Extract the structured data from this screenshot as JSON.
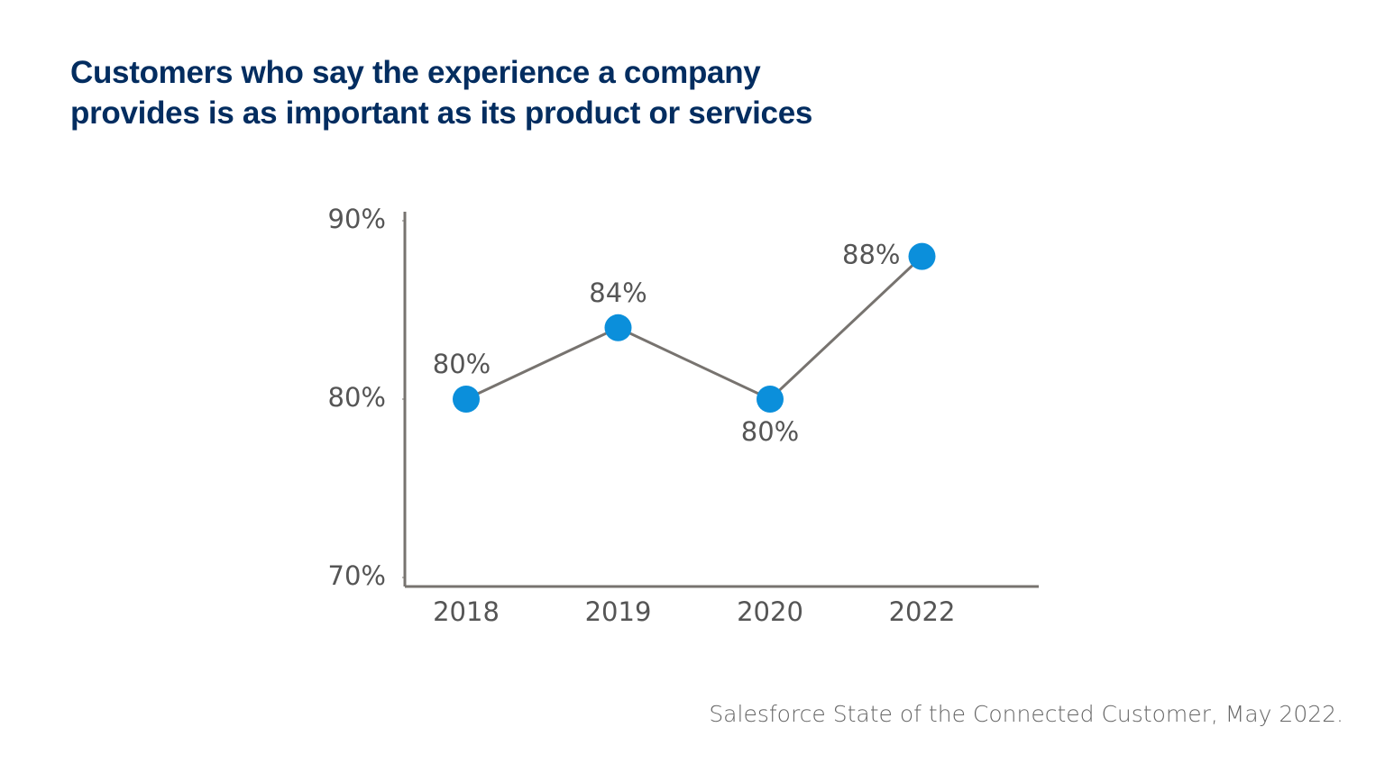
{
  "chart_data": {
    "type": "line",
    "title": "Customers who say the experience a company provides is as important as its product or services",
    "categories": [
      "2018",
      "2019",
      "2020",
      "2022"
    ],
    "series": [
      {
        "color": "#0b8fdb",
        "values": [
          80,
          84,
          80,
          88
        ],
        "value_labels": [
          "80%",
          "84%",
          "80%",
          "88%"
        ]
      }
    ],
    "ylim": [
      70,
      90
    ],
    "yticks": [
      {
        "value": 70,
        "label": "70%"
      },
      {
        "value": 80,
        "label": "80%"
      },
      {
        "value": 90,
        "label": "90%"
      }
    ],
    "grid": false,
    "source": "Salesforce State of the Connected Customer, May 2022."
  }
}
